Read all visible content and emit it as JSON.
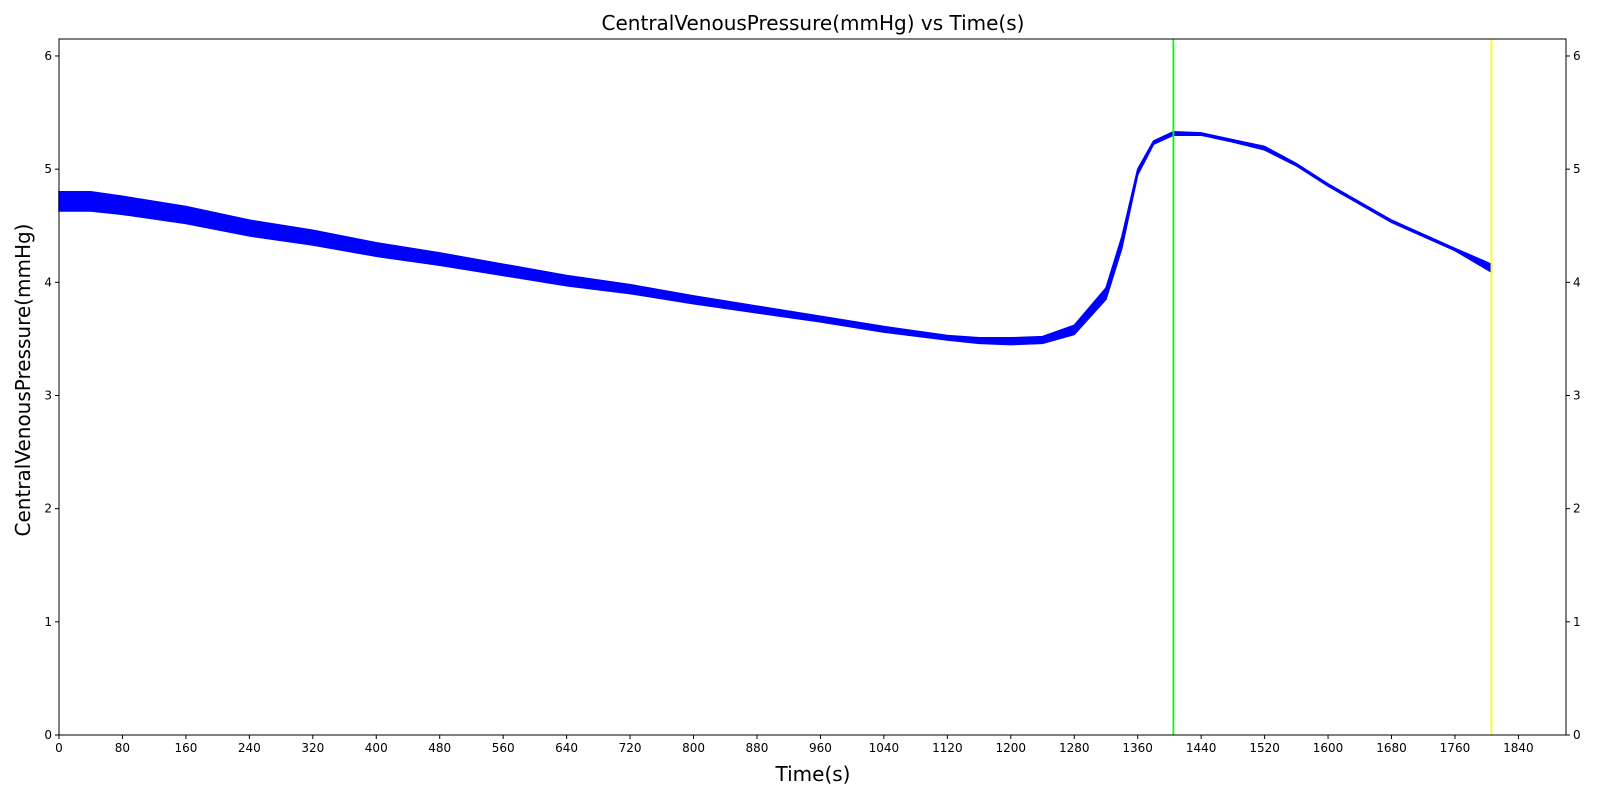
{
  "chart_data": {
    "type": "line",
    "title": "CentralVenousPressure(mmHg) vs Time(s)",
    "xlabel": "Time(s)",
    "ylabel": "CentralVenousPressure(mmHg)",
    "xlim": [
      0,
      1900
    ],
    "ylim": [
      0,
      6.15
    ],
    "x_ticks": [
      0,
      80,
      160,
      240,
      320,
      400,
      480,
      560,
      640,
      720,
      800,
      880,
      960,
      1040,
      1120,
      1200,
      1280,
      1360,
      1440,
      1520,
      1600,
      1680,
      1760,
      1840
    ],
    "y_ticks": [
      0,
      1,
      2,
      3,
      4,
      5,
      6
    ],
    "right_y_axis_ticks": true,
    "grid": false,
    "series": [
      {
        "color": "#0000ff",
        "x": [
          0,
          40,
          80,
          160,
          240,
          320,
          400,
          480,
          560,
          640,
          720,
          800,
          880,
          960,
          1040,
          1120,
          1160,
          1200,
          1240,
          1280,
          1320,
          1340,
          1360,
          1380,
          1405,
          1440,
          1480,
          1520,
          1560,
          1600,
          1680,
          1760,
          1806
        ],
        "y_upper": [
          4.8,
          4.8,
          4.76,
          4.67,
          4.55,
          4.46,
          4.35,
          4.26,
          4.16,
          4.06,
          3.98,
          3.88,
          3.79,
          3.7,
          3.61,
          3.53,
          3.51,
          3.51,
          3.52,
          3.62,
          3.95,
          4.4,
          5.0,
          5.25,
          5.33,
          5.32,
          5.26,
          5.2,
          5.05,
          4.87,
          4.55,
          4.3,
          4.16
        ],
        "y_lower": [
          4.63,
          4.63,
          4.6,
          4.52,
          4.41,
          4.33,
          4.23,
          4.15,
          4.06,
          3.97,
          3.9,
          3.81,
          3.73,
          3.65,
          3.56,
          3.49,
          3.46,
          3.45,
          3.46,
          3.54,
          3.85,
          4.3,
          4.95,
          5.22,
          5.3,
          5.3,
          5.24,
          5.17,
          5.03,
          4.85,
          4.53,
          4.28,
          4.09
        ]
      }
    ],
    "vertical_lines": [
      {
        "x": 1405,
        "color": "#00ff00"
      },
      {
        "x": 1806,
        "color": "#ffff00"
      }
    ]
  }
}
